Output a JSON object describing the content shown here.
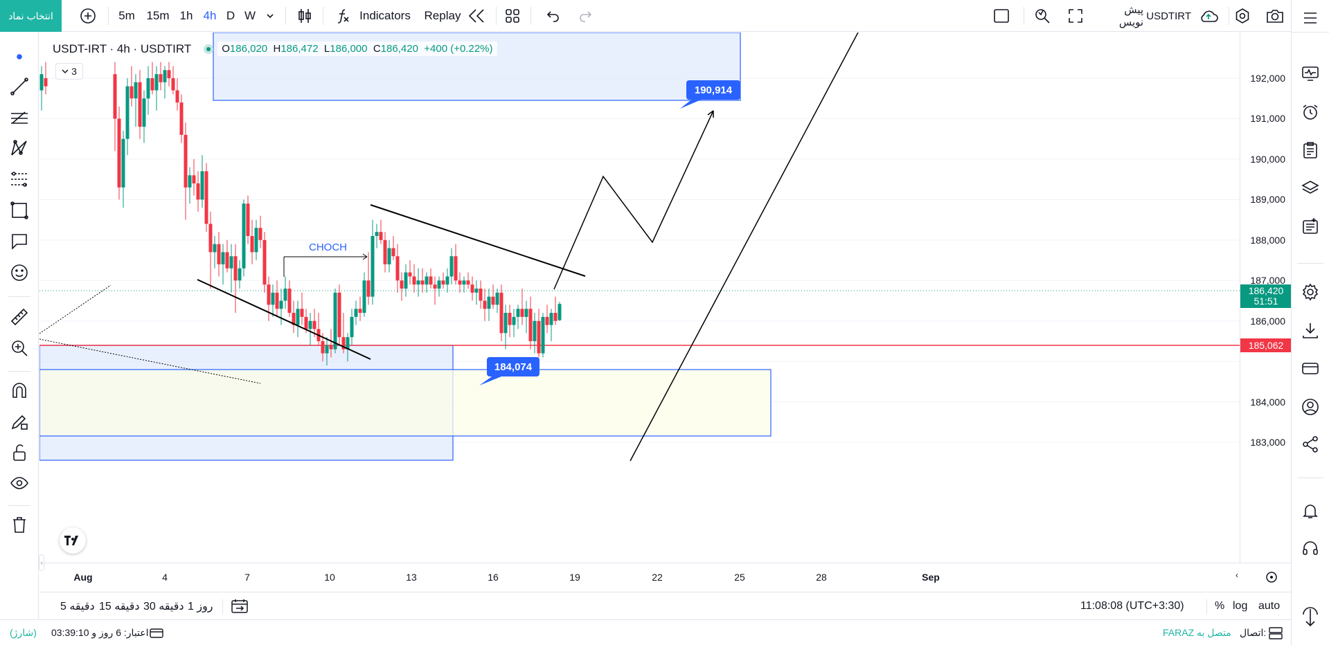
{
  "toolbar": {
    "symbol_button": "انتخاب نماد",
    "intervals": [
      "5m",
      "15m",
      "1h",
      "4h",
      "D",
      "W"
    ],
    "active_interval": "4h",
    "indicators_label": "Indicators",
    "replay_label": "Replay",
    "symbol_name": "USDTIRT",
    "draft_label": "پیش نویس"
  },
  "legend": {
    "title": "USDT-IRT · 4h · USDTIRT",
    "open_label": "O",
    "open": "186,020",
    "high_label": "H",
    "high": "186,472",
    "low_label": "L",
    "low": "186,000",
    "close_label": "C",
    "close": "186,420",
    "change": "+400 (+0.22%)",
    "collapsed_count": "3"
  },
  "chart": {
    "annotations": {
      "choch": "CHOCH",
      "callout_top": "190,914",
      "callout_bottom": "184,074"
    },
    "price_ticks": [
      "192,000",
      "191,000",
      "190,000",
      "189,000",
      "188,000",
      "187,000",
      "186,000",
      "184,000",
      "183,000"
    ],
    "last_price": "186,420",
    "countdown": "51:51",
    "red_line_price": "185,062",
    "time_ticks": [
      "Aug",
      "4",
      "7",
      "10",
      "13",
      "16",
      "19",
      "22",
      "25",
      "28",
      "Sep"
    ]
  },
  "bottom": {
    "ranges": [
      "5 دقیقه",
      "15 دقیقه",
      "30 دقیقه",
      "1 روز"
    ],
    "clock": "11:08:08 (UTC+3:30)",
    "percent": "%",
    "log": "log",
    "auto": "auto"
  },
  "status": {
    "credit": "اعتبار: 6 روز و 03:39:10",
    "charge": "(شارژ)",
    "connection_label": "اتصال:",
    "connection_value": "متصل به FARAZ"
  },
  "colors": {
    "up": "#089981",
    "down": "#f23645",
    "accent": "#2962ff",
    "symbol_button": "#1fb5a5",
    "zone_blue": "#dbe6fb",
    "zone_yellow": "#fefde8"
  }
}
